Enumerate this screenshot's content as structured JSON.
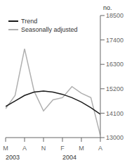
{
  "chart_data": {
    "type": "line",
    "ylabel": "no.",
    "x": [
      0,
      0.5,
      1,
      1.5,
      2,
      2.5,
      3,
      3.5,
      4,
      4.5,
      5
    ],
    "xlim": [
      0,
      5
    ],
    "xticks": [
      {
        "value": 0,
        "label": "M"
      },
      {
        "value": 1,
        "label": "A"
      },
      {
        "value": 2,
        "label": "N"
      },
      {
        "value": 3,
        "label": "F"
      },
      {
        "value": 4,
        "label": "M"
      },
      {
        "value": 5,
        "label": "A"
      }
    ],
    "ylim": [
      13000,
      18500
    ],
    "yticks": [
      13000,
      14100,
      15200,
      16300,
      17400,
      18500
    ],
    "annotations": [
      {
        "text": "2003",
        "x": 0
      },
      {
        "text": "2004",
        "x": 3
      }
    ],
    "series": [
      {
        "name": "Trend",
        "color": "#1a1a1a",
        "values": [
          14400,
          14650,
          14900,
          15050,
          15100,
          15050,
          14950,
          14800,
          14600,
          14350,
          14050
        ]
      },
      {
        "name": "Seasonally adjusted",
        "color": "#b0b0b0",
        "values": [
          14300,
          14900,
          17000,
          15100,
          14200,
          14700,
          14800,
          15300,
          15000,
          14800,
          13100
        ]
      }
    ],
    "legend": "upper left",
    "grid": false
  }
}
